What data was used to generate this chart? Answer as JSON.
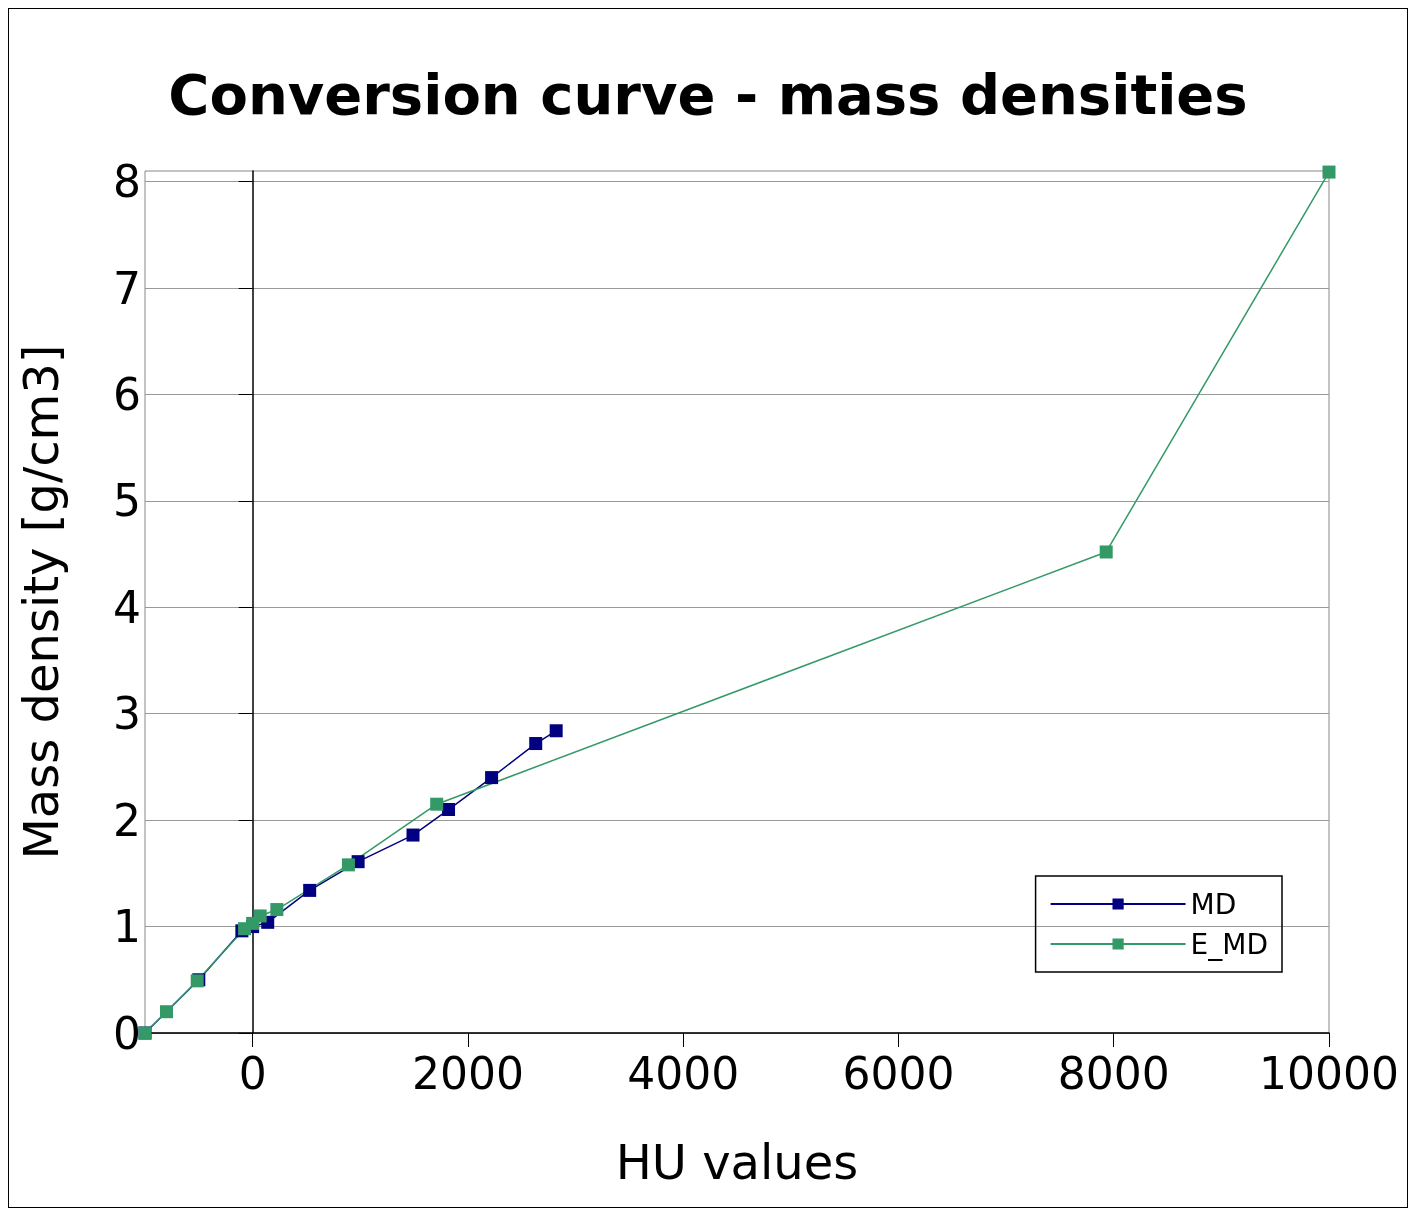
{
  "chart_data": {
    "type": "line",
    "title": "Conversion curve - mass densities",
    "xlabel": "HU values",
    "ylabel": "Mass density [g/cm3]",
    "xlim": [
      -1000,
      10000
    ],
    "xticks": [
      0,
      2000,
      4000,
      6000,
      8000,
      10000
    ],
    "ylim": [
      0,
      8.1
    ],
    "yticks": [
      0,
      1,
      2,
      3,
      4,
      5,
      6,
      7,
      8
    ],
    "grid": "y",
    "legend": "bottom right",
    "marker": "square",
    "series": [
      {
        "name": "MD",
        "color": "#000080",
        "x": [
          -1000,
          -500,
          -100,
          0,
          140,
          530,
          980,
          1490,
          1820,
          2220,
          2630,
          2820
        ],
        "values": [
          0,
          0.5,
          0.96,
          1.0,
          1.04,
          1.34,
          1.61,
          1.86,
          2.1,
          2.4,
          2.72,
          2.84
        ]
      },
      {
        "name": "E_MD",
        "color": "#339966",
        "x": [
          -1000,
          -800,
          -515,
          -75,
          0,
          70,
          225,
          890,
          1710,
          7930,
          10000
        ],
        "values": [
          0,
          0.2,
          0.49,
          0.98,
          1.03,
          1.1,
          1.16,
          1.58,
          2.15,
          4.52,
          8.09
        ]
      }
    ]
  }
}
